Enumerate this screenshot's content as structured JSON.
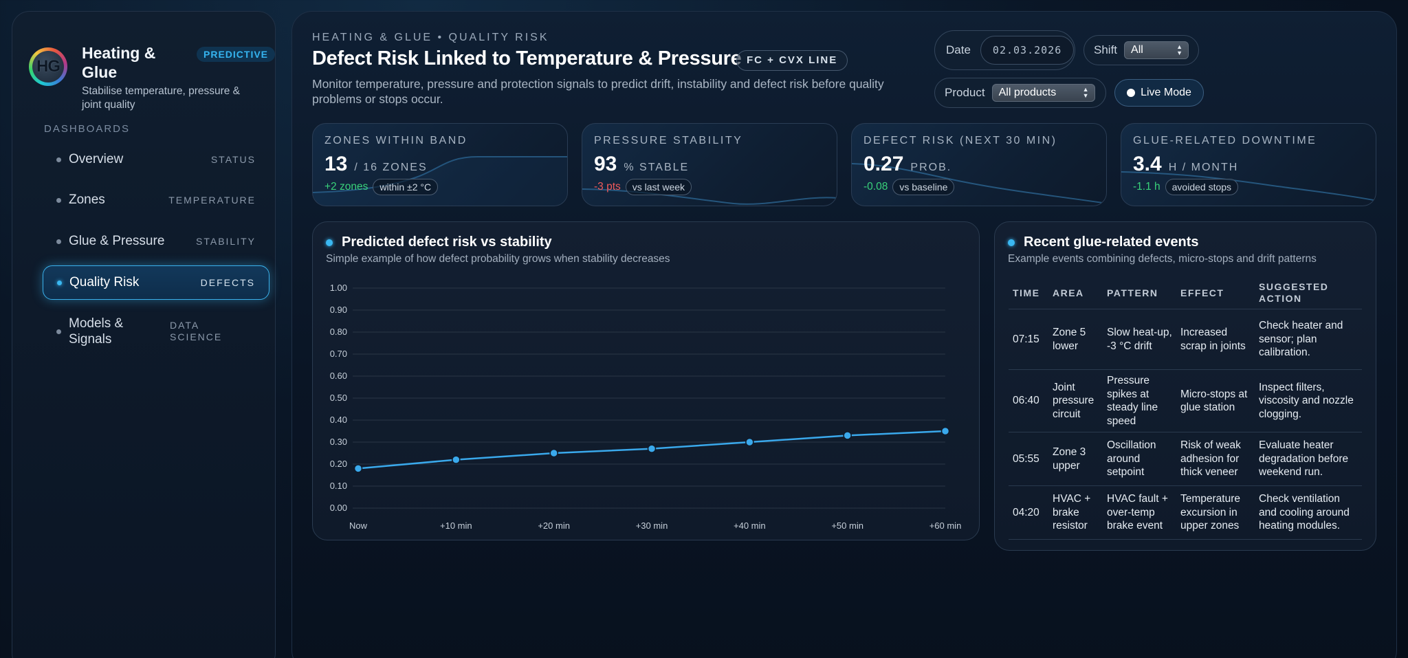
{
  "sidebar": {
    "logo_text": "HG",
    "brand_title": "Heating & Glue",
    "brand_badge": "PREDICTIVE",
    "brand_subtitle": "Stabilise temperature, pressure & joint quality",
    "nav_heading": "DASHBOARDS",
    "items": [
      {
        "label": "Overview",
        "tag": "STATUS"
      },
      {
        "label": "Zones",
        "tag": "TEMPERATURE"
      },
      {
        "label": "Glue & Pressure",
        "tag": "STABILITY"
      },
      {
        "label": "Quality Risk",
        "tag": "DEFECTS"
      },
      {
        "label": "Models & Signals",
        "tag": "DATA SCIENCE"
      }
    ],
    "active_index": 3
  },
  "header": {
    "eyebrow": "HEATING & GLUE • QUALITY RISK",
    "title": "Defect Risk Linked to Temperature & Pressure",
    "line_badge": "FC + CVX LINE",
    "description": "Monitor temperature, pressure and protection signals to predict drift, instability and defect risk before quality problems or stops occur."
  },
  "controls": {
    "date_label": "Date",
    "date_value": "02.03.2026",
    "shift_label": "Shift",
    "shift_value": "All",
    "product_label": "Product",
    "product_value": "All products",
    "live_label": "Live Mode"
  },
  "kpis": [
    {
      "label": "ZONES WITHIN BAND",
      "value": "13",
      "unit": "/ 16 ZONES",
      "delta": "+2 zones",
      "delta_type": "pos",
      "note": "within ±2 °C"
    },
    {
      "label": "PRESSURE STABILITY",
      "value": "93",
      "unit": "% STABLE",
      "delta": "-3 pts",
      "delta_type": "neg",
      "note": "vs last week"
    },
    {
      "label": "DEFECT RISK (NEXT 30 MIN)",
      "value": "0.27",
      "unit": "PROB.",
      "delta": "-0.08",
      "delta_type": "pos",
      "note": "vs baseline"
    },
    {
      "label": "GLUE-RELATED DOWNTIME",
      "value": "3.4",
      "unit": "H / MONTH",
      "delta": "-1.1 h",
      "delta_type": "pos",
      "note": "avoided stops"
    }
  ],
  "chart_panel": {
    "title": "Predicted defect risk vs stability",
    "subtitle": "Simple example of how defect probability grows when stability decreases"
  },
  "chart_data": {
    "type": "line",
    "title": "Predicted defect risk vs stability",
    "categories": [
      "Now",
      "+10 min",
      "+20 min",
      "+30 min",
      "+40 min",
      "+50 min",
      "+60 min"
    ],
    "series": [
      {
        "name": "Defect risk",
        "values": [
          0.18,
          0.22,
          0.25,
          0.27,
          0.3,
          0.33,
          0.35
        ]
      }
    ],
    "yticks": [
      "0.00",
      "0.10",
      "0.20",
      "0.30",
      "0.40",
      "0.50",
      "0.60",
      "0.70",
      "0.80",
      "0.90",
      "1.00"
    ],
    "ylim": [
      0,
      1
    ],
    "grid": true,
    "color": "#3aa9ec"
  },
  "events_panel": {
    "title": "Recent glue-related events",
    "subtitle": "Example events combining defects, micro-stops and drift patterns",
    "columns": [
      "TIME",
      "AREA",
      "PATTERN",
      "EFFECT",
      "SUGGESTED ACTION"
    ],
    "rows": [
      [
        "07:15",
        "Zone 5 lower",
        "Slow heat-up, -3 °C drift",
        "Increased scrap in joints",
        "Check heater and sensor; plan calibration."
      ],
      [
        "06:40",
        "Joint pressure circuit",
        "Pressure spikes at steady line speed",
        "Micro-stops at glue station",
        "Inspect filters, viscosity and nozzle clogging."
      ],
      [
        "05:55",
        "Zone 3 upper",
        "Oscillation around setpoint",
        "Risk of weak adhesion for thick veneer",
        "Evaluate heater degradation before weekend run."
      ],
      [
        "04:20",
        "HVAC + brake resistor",
        "HVAC fault + over-temp brake event",
        "Temperature excursion in upper zones",
        "Check ventilation and cooling around heating modules."
      ]
    ]
  },
  "colors": {
    "accent": "#3ab8f2",
    "positive": "#39d27a",
    "negative": "#f05a5a"
  }
}
